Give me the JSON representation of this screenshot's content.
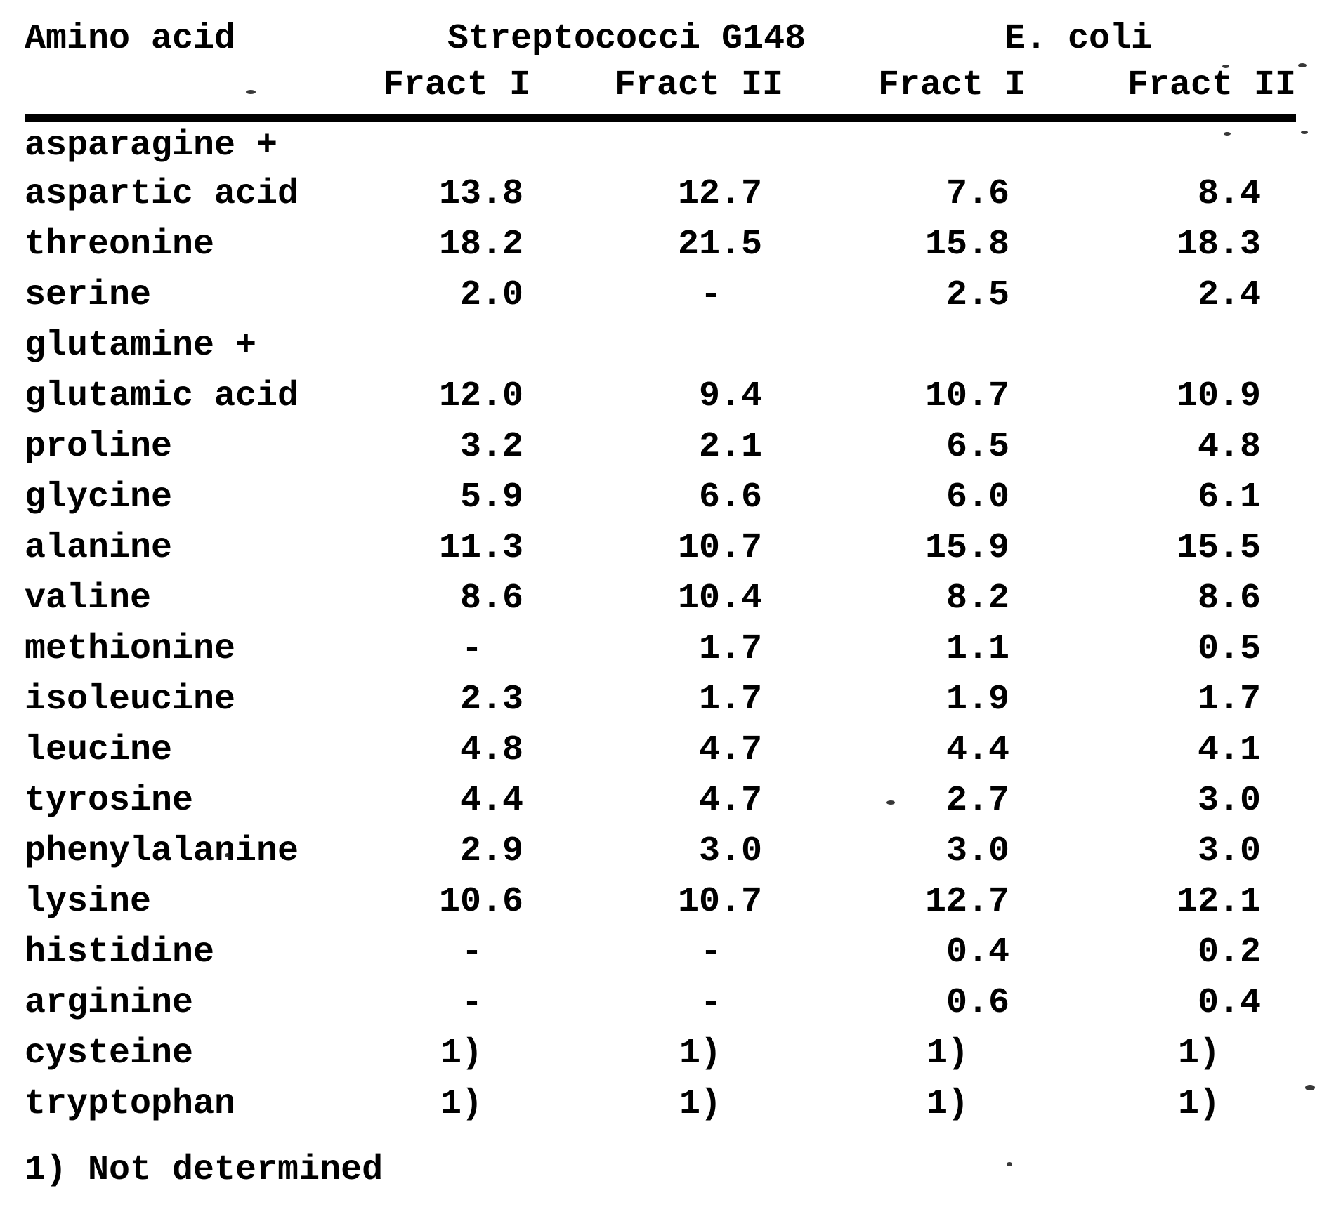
{
  "colors": {
    "ink": "#000000",
    "paper": "#ffffff"
  },
  "table": {
    "corner_label": "Amino acid",
    "group_headers": [
      "Streptococci G148",
      "E. coli"
    ],
    "sub_headers": [
      "Fract I",
      "Fract II",
      "Fract I",
      "Fract II"
    ],
    "rows": [
      {
        "name": "asparagine +",
        "values": [
          "",
          "",
          "",
          ""
        ]
      },
      {
        "name": "aspartic acid",
        "values": [
          "13.8",
          "12.7",
          "7.6",
          "8.4"
        ]
      },
      {
        "name": "threonine",
        "values": [
          "18.2",
          "21.5",
          "15.8",
          "18.3"
        ]
      },
      {
        "name": "serine",
        "values": [
          "2.0",
          "-",
          "2.5",
          "2.4"
        ]
      },
      {
        "name": "glutamine +",
        "values": [
          "",
          "",
          "",
          ""
        ]
      },
      {
        "name": "glutamic acid",
        "values": [
          "12.0",
          "9.4",
          "10.7",
          "10.9"
        ]
      },
      {
        "name": "proline",
        "values": [
          "3.2",
          "2.1",
          "6.5",
          "4.8"
        ]
      },
      {
        "name": "glycine",
        "values": [
          "5.9",
          "6.6",
          "6.0",
          "6.1"
        ]
      },
      {
        "name": "alanine",
        "values": [
          "11.3",
          "10.7",
          "15.9",
          "15.5"
        ]
      },
      {
        "name": "valine",
        "values": [
          "8.6",
          "10.4",
          "8.2",
          "8.6"
        ]
      },
      {
        "name": "methionine",
        "values": [
          "-",
          "1.7",
          "1.1",
          "0.5"
        ]
      },
      {
        "name": "isoleucine",
        "values": [
          "2.3",
          "1.7",
          "1.9",
          "1.7"
        ]
      },
      {
        "name": "leucine",
        "values": [
          "4.8",
          "4.7",
          "4.4",
          "4.1"
        ]
      },
      {
        "name": "tyrosine",
        "values": [
          "4.4",
          "4.7",
          "2.7",
          "3.0"
        ]
      },
      {
        "name": "phenylalanine",
        "values": [
          "2.9",
          "3.0",
          "3.0",
          "3.0"
        ]
      },
      {
        "name": "lysine",
        "values": [
          "10.6",
          "10.7",
          "12.7",
          "12.1"
        ]
      },
      {
        "name": "histidine",
        "values": [
          "-",
          "-",
          "0.4",
          "0.2"
        ]
      },
      {
        "name": "arginine",
        "values": [
          "-",
          "-",
          "0.6",
          "0.4"
        ]
      },
      {
        "name": "cysteine",
        "values": [
          "1)",
          "1)",
          "1)",
          "1)"
        ]
      },
      {
        "name": "tryptophan",
        "values": [
          "1)",
          "1)",
          "1)",
          "1)"
        ]
      }
    ],
    "footnote": "1) Not determined"
  }
}
